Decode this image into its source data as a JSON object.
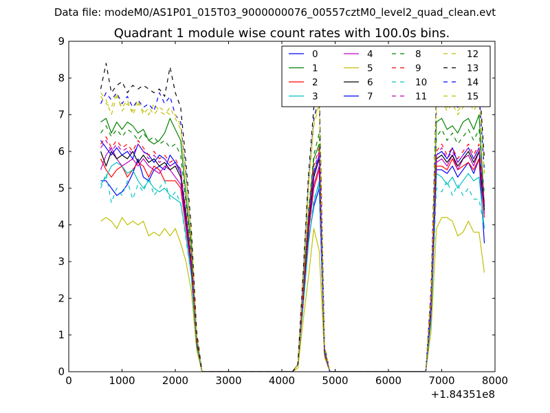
{
  "chart_data": {
    "type": "line",
    "suptitle": "Data file: modeM0/AS1P01_015T03_9000000076_00557cztM0_level2_quad_clean.evt",
    "title": "Quadrant 1 module wise count rates with 100.0s bins.",
    "xlabel": "",
    "ylabel": "",
    "x_offset_label": "+1.84351e8",
    "xlim": [
      0,
      8000
    ],
    "ylim": [
      0,
      9
    ],
    "xticks": [
      "0",
      "1000",
      "2000",
      "3000",
      "4000",
      "5000",
      "6000",
      "7000",
      "8000"
    ],
    "yticks": [
      "0",
      "1",
      "2",
      "3",
      "4",
      "5",
      "6",
      "7",
      "8",
      "9"
    ],
    "legend_position": "upper-right",
    "x": [
      600,
      700,
      800,
      900,
      1000,
      1100,
      1200,
      1300,
      1400,
      1500,
      1600,
      1700,
      1800,
      1900,
      2000,
      2100,
      2200,
      2300,
      2400,
      2500,
      2600,
      2700,
      2800,
      2900,
      3000,
      3100,
      3200,
      3300,
      3400,
      3500,
      3600,
      3700,
      3800,
      3900,
      4000,
      4100,
      4200,
      4300,
      4400,
      4500,
      4600,
      4700,
      4800,
      4900,
      5000,
      5100,
      5200,
      5300,
      5400,
      5500,
      5600,
      5700,
      5800,
      5900,
      6000,
      6100,
      6200,
      6300,
      6400,
      6500,
      6600,
      6700,
      6800,
      6900,
      7000,
      7100,
      7200,
      7300,
      7400,
      7500,
      7600,
      7700,
      7800
    ],
    "series": [
      {
        "name": "0",
        "color": "#0000ff",
        "dash": "solid",
        "values": [
          5.2,
          5.2,
          5.0,
          4.8,
          4.9,
          5.1,
          5.4,
          5.8,
          5.3,
          5.2,
          5.5,
          5.6,
          5.5,
          5.9,
          5.7,
          5.5,
          4.0,
          2.8,
          0.8,
          0,
          0,
          0,
          0,
          0,
          0,
          0,
          0,
          0,
          0,
          0,
          0,
          0,
          0,
          0,
          0,
          0,
          0,
          0.2,
          2.0,
          3.6,
          4.5,
          5.0,
          0.5,
          0,
          0,
          0,
          0,
          0,
          0,
          0,
          0,
          0,
          0,
          0,
          0,
          0,
          0,
          0,
          0,
          0,
          0,
          0,
          1.5,
          5.5,
          5.5,
          5.4,
          5.6,
          5.3,
          5.5,
          5.7,
          5.4,
          5.8,
          3.5
        ]
      },
      {
        "name": "1",
        "color": "#008000",
        "dash": "solid",
        "values": [
          6.8,
          6.9,
          6.5,
          6.8,
          6.6,
          6.8,
          6.7,
          6.5,
          6.6,
          6.3,
          6.2,
          6.3,
          6.5,
          6.9,
          6.6,
          6.3,
          4.8,
          3.4,
          1.0,
          0,
          0,
          0,
          0,
          0,
          0,
          0,
          0,
          0,
          0,
          0,
          0,
          0,
          0,
          0,
          0,
          0,
          0,
          0.2,
          2.3,
          4.3,
          5.8,
          6.2,
          0.6,
          0,
          0,
          0,
          0,
          0,
          0,
          0,
          0,
          0,
          0,
          0,
          0,
          0,
          0,
          0,
          0,
          0,
          0,
          0,
          1.9,
          6.8,
          6.9,
          6.6,
          6.7,
          6.5,
          6.8,
          6.9,
          6.6,
          7.0,
          4.5
        ]
      },
      {
        "name": "2",
        "color": "#ff0000",
        "dash": "solid",
        "values": [
          5.8,
          5.5,
          5.3,
          5.5,
          5.6,
          5.3,
          5.5,
          5.7,
          5.6,
          5.3,
          5.6,
          5.5,
          5.2,
          5.2,
          5.2,
          5.0,
          3.9,
          2.8,
          0.8,
          0,
          0,
          0,
          0,
          0,
          0,
          0,
          0,
          0,
          0,
          0,
          0,
          0,
          0,
          0,
          0,
          0,
          0,
          0.2,
          1.9,
          3.8,
          5.0,
          5.5,
          0.5,
          0,
          0,
          0,
          0,
          0,
          0,
          0,
          0,
          0,
          0,
          0,
          0,
          0,
          0,
          0,
          0,
          0,
          0,
          0,
          1.6,
          5.6,
          5.6,
          5.5,
          5.8,
          5.5,
          5.6,
          5.7,
          5.5,
          5.8,
          4.2
        ]
      },
      {
        "name": "3",
        "color": "#00bfbf",
        "dash": "solid",
        "values": [
          5.1,
          5.3,
          5.6,
          5.7,
          5.6,
          5.4,
          5.5,
          5.2,
          5.0,
          5.2,
          5.0,
          4.9,
          5.0,
          4.8,
          4.7,
          4.6,
          3.7,
          2.6,
          0.7,
          0,
          0,
          0,
          0,
          0,
          0,
          0,
          0,
          0,
          0,
          0,
          0,
          0,
          0,
          0,
          0,
          0,
          0,
          0.2,
          1.8,
          3.5,
          4.6,
          5.2,
          0.5,
          0,
          0,
          0,
          0,
          0,
          0,
          0,
          0,
          0,
          0,
          0,
          0,
          0,
          0,
          0,
          0,
          0,
          0,
          0,
          1.4,
          5.4,
          5.3,
          5.1,
          5.3,
          5.0,
          5.2,
          5.4,
          5.2,
          5.3,
          3.9
        ]
      },
      {
        "name": "4",
        "color": "#bf00bf",
        "dash": "solid",
        "values": [
          5.5,
          5.9,
          6.1,
          5.8,
          5.6,
          5.7,
          5.8,
          5.6,
          5.8,
          5.6,
          5.5,
          5.4,
          5.6,
          5.5,
          5.3,
          5.1,
          4.0,
          2.8,
          0.8,
          0,
          0,
          0,
          0,
          0,
          0,
          0,
          0,
          0,
          0,
          0,
          0,
          0,
          0,
          0,
          0,
          0,
          0,
          0.2,
          1.9,
          3.9,
          5.1,
          5.6,
          0.5,
          0,
          0,
          0,
          0,
          0,
          0,
          0,
          0,
          0,
          0,
          0,
          0,
          0,
          0,
          0,
          0,
          0,
          0,
          0,
          1.6,
          5.7,
          5.8,
          5.6,
          5.9,
          5.5,
          5.8,
          5.9,
          5.6,
          6.0,
          4.3
        ]
      },
      {
        "name": "5",
        "color": "#bfbf00",
        "dash": "solid",
        "values": [
          4.1,
          4.2,
          4.1,
          3.9,
          4.2,
          4.0,
          4.1,
          4.0,
          4.1,
          3.7,
          3.8,
          3.7,
          3.9,
          3.7,
          3.9,
          3.5,
          3.0,
          2.2,
          0.6,
          0,
          0,
          0,
          0,
          0,
          0,
          0,
          0,
          0,
          0,
          0,
          0,
          0,
          0,
          0,
          0,
          0,
          0,
          0.1,
          1.4,
          2.6,
          3.9,
          3.3,
          0.4,
          0,
          0,
          0,
          0,
          0,
          0,
          0,
          0,
          0,
          0,
          0,
          0,
          0,
          0,
          0,
          0,
          0,
          0,
          0,
          1.1,
          3.9,
          4.2,
          4.2,
          4.1,
          3.7,
          3.8,
          4.1,
          3.8,
          3.8,
          2.7
        ]
      },
      {
        "name": "6",
        "color": "#000000",
        "dash": "solid",
        "values": [
          6.0,
          5.6,
          6.0,
          5.8,
          5.9,
          5.8,
          6.0,
          5.7,
          5.9,
          5.7,
          5.8,
          5.6,
          5.7,
          5.5,
          5.6,
          5.3,
          4.2,
          2.9,
          0.8,
          0,
          0,
          0,
          0,
          0,
          0,
          0,
          0,
          0,
          0,
          0,
          0,
          0,
          0,
          0,
          0,
          0,
          0,
          0.2,
          2.0,
          4.0,
          5.3,
          5.8,
          0.5,
          0,
          0,
          0,
          0,
          0,
          0,
          0,
          0,
          0,
          0,
          0,
          0,
          0,
          0,
          0,
          0,
          0,
          0,
          0,
          1.7,
          5.8,
          5.9,
          5.7,
          5.9,
          5.6,
          5.8,
          6.0,
          5.7,
          6.0,
          4.4
        ]
      },
      {
        "name": "7",
        "color": "#0000ff",
        "dash": "solid",
        "values": [
          6.3,
          6.1,
          5.9,
          6.1,
          5.9,
          6.0,
          5.8,
          6.2,
          6.0,
          5.9,
          5.7,
          5.9,
          5.8,
          5.6,
          5.7,
          5.4,
          4.3,
          3.0,
          0.9,
          0,
          0,
          0,
          0,
          0,
          0,
          0,
          0,
          0,
          0,
          0,
          0,
          0,
          0,
          0,
          0,
          0,
          0,
          0.2,
          2.1,
          4.1,
          5.4,
          5.9,
          0.5,
          0,
          0,
          0,
          0,
          0,
          0,
          0,
          0,
          0,
          0,
          0,
          0,
          0,
          0,
          0,
          0,
          0,
          0,
          0,
          1.7,
          5.9,
          6.0,
          5.8,
          6.1,
          5.7,
          5.9,
          6.1,
          5.8,
          6.1,
          4.5
        ]
      },
      {
        "name": "8",
        "color": "#008000",
        "dash": "dashed",
        "values": [
          6.5,
          6.7,
          6.4,
          6.6,
          6.4,
          6.6,
          6.5,
          6.3,
          6.5,
          6.3,
          6.4,
          6.2,
          6.3,
          6.1,
          6.2,
          5.9,
          4.6,
          3.2,
          0.9,
          0,
          0,
          0,
          0,
          0,
          0,
          0,
          0,
          0,
          0,
          0,
          0,
          0,
          0,
          0,
          0,
          0,
          0,
          0.2,
          2.2,
          4.4,
          5.9,
          6.5,
          0.6,
          0,
          0,
          0,
          0,
          0,
          0,
          0,
          0,
          0,
          0,
          0,
          0,
          0,
          0,
          0,
          0,
          0,
          0,
          0,
          1.9,
          6.4,
          6.6,
          6.3,
          6.5,
          6.2,
          6.4,
          6.6,
          6.3,
          6.6,
          4.8
        ]
      },
      {
        "name": "9",
        "color": "#ff0000",
        "dash": "dashed",
        "values": [
          6.2,
          6.4,
          6.1,
          6.3,
          6.1,
          6.2,
          6.0,
          6.3,
          6.1,
          5.9,
          6.0,
          5.8,
          5.9,
          5.7,
          5.8,
          5.5,
          4.4,
          3.0,
          0.9,
          0,
          0,
          0,
          0,
          0,
          0,
          0,
          0,
          0,
          0,
          0,
          0,
          0,
          0,
          0,
          0,
          0,
          0,
          0.2,
          2.1,
          4.2,
          5.6,
          6.1,
          0.5,
          0,
          0,
          0,
          0,
          0,
          0,
          0,
          0,
          0,
          0,
          0,
          0,
          0,
          0,
          0,
          0,
          0,
          0,
          0,
          1.8,
          6.0,
          6.2,
          5.9,
          6.1,
          5.8,
          6.0,
          6.2,
          5.9,
          6.2,
          4.6
        ]
      },
      {
        "name": "10",
        "color": "#00bfbf",
        "dash": "dashed",
        "values": [
          5.0,
          5.4,
          4.6,
          5.0,
          4.8,
          5.2,
          4.7,
          5.1,
          4.9,
          5.3,
          4.8,
          5.0,
          5.2,
          4.7,
          4.9,
          4.6,
          3.6,
          2.6,
          0.7,
          0,
          0,
          0,
          0,
          0,
          0,
          0,
          0,
          0,
          0,
          0,
          0,
          0,
          0,
          0,
          0,
          0,
          0,
          0.2,
          1.8,
          3.5,
          4.7,
          5.1,
          0.5,
          0,
          0,
          0,
          0,
          0,
          0,
          0,
          0,
          0,
          0,
          0,
          0,
          0,
          0,
          0,
          0,
          0,
          0,
          0,
          1.4,
          5.0,
          4.9,
          5.2,
          4.8,
          5.1,
          4.8,
          5.0,
          4.7,
          4.7,
          3.9
        ]
      },
      {
        "name": "11",
        "color": "#bf00bf",
        "dash": "dashed",
        "values": [
          6.1,
          6.3,
          6.0,
          6.2,
          6.0,
          6.1,
          5.9,
          6.2,
          6.0,
          5.8,
          5.9,
          5.7,
          5.8,
          5.6,
          5.7,
          5.4,
          4.3,
          3.0,
          0.9,
          0,
          0,
          0,
          0,
          0,
          0,
          0,
          0,
          0,
          0,
          0,
          0,
          0,
          0,
          0,
          0,
          0,
          0,
          0.2,
          2.1,
          4.1,
          5.5,
          6.0,
          0.5,
          0,
          0,
          0,
          0,
          0,
          0,
          0,
          0,
          0,
          0,
          0,
          0,
          0,
          0,
          0,
          0,
          0,
          0,
          0,
          1.8,
          5.9,
          6.1,
          5.8,
          6.0,
          5.7,
          5.9,
          6.1,
          5.8,
          6.1,
          4.5
        ]
      },
      {
        "name": "12",
        "color": "#bfbf00",
        "dash": "dashed",
        "values": [
          7.6,
          7.4,
          7.0,
          7.5,
          7.2,
          7.4,
          7.0,
          7.3,
          7.1,
          7.0,
          7.3,
          7.1,
          7.0,
          7.2,
          6.9,
          6.6,
          5.2,
          3.6,
          1.0,
          0,
          0,
          0,
          0,
          0,
          0,
          0,
          0,
          0,
          0,
          0,
          0,
          0,
          0,
          0,
          0,
          0,
          0,
          0.2,
          2.5,
          5.0,
          6.7,
          7.3,
          0.7,
          0,
          0,
          0,
          0,
          0,
          0,
          0,
          0,
          0,
          0,
          0,
          0,
          0,
          0,
          0,
          0,
          0,
          0,
          0,
          2.2,
          7.2,
          7.4,
          7.1,
          7.3,
          7.0,
          7.2,
          7.4,
          7.1,
          7.4,
          5.4
        ]
      },
      {
        "name": "13",
        "color": "#000000",
        "dash": "dashed",
        "values": [
          7.7,
          8.4,
          7.6,
          7.8,
          7.9,
          7.6,
          7.8,
          7.7,
          7.8,
          7.7,
          7.6,
          7.7,
          7.5,
          8.3,
          7.6,
          7.2,
          5.7,
          3.9,
          1.1,
          0,
          0,
          0,
          0,
          0,
          0,
          0,
          0,
          0,
          0,
          0,
          0,
          0,
          0,
          0,
          0,
          0,
          0,
          0.2,
          2.7,
          5.4,
          7.2,
          7.9,
          0.7,
          0,
          0,
          0,
          0,
          0,
          0,
          0,
          0,
          0,
          0,
          0,
          0,
          0,
          0,
          0,
          0,
          0,
          0,
          0,
          2.3,
          7.6,
          7.9,
          8.1,
          7.7,
          7.5,
          7.7,
          8.0,
          7.6,
          8.0,
          5.8
        ]
      },
      {
        "name": "14",
        "color": "#0000ff",
        "dash": "dashed",
        "values": [
          7.3,
          7.6,
          7.4,
          7.6,
          7.3,
          7.5,
          7.2,
          7.4,
          7.2,
          7.3,
          7.1,
          7.6,
          7.3,
          7.5,
          7.0,
          6.8,
          5.4,
          3.7,
          1.0,
          0,
          0,
          0,
          0,
          0,
          0,
          0,
          0,
          0,
          0,
          0,
          0,
          0,
          0,
          0,
          0,
          0,
          0,
          0.2,
          2.6,
          5.2,
          6.9,
          7.5,
          0.7,
          0,
          0,
          0,
          0,
          0,
          0,
          0,
          0,
          0,
          0,
          0,
          0,
          0,
          0,
          0,
          0,
          0,
          0,
          0,
          2.2,
          7.4,
          7.6,
          7.3,
          7.5,
          7.2,
          7.4,
          7.6,
          7.3,
          7.6,
          5.5
        ]
      },
      {
        "name": "15",
        "color": "#bfbf00",
        "dash": "dashed",
        "values": [
          7.5,
          7.3,
          7.2,
          7.6,
          7.1,
          7.3,
          7.1,
          7.4,
          7.0,
          7.2,
          7.0,
          7.2,
          7.1,
          7.0,
          7.0,
          6.7,
          5.3,
          3.7,
          1.0,
          0,
          0,
          0,
          0,
          0,
          0,
          0,
          0,
          0,
          0,
          0,
          0,
          0,
          0,
          0,
          0,
          0,
          0,
          0.2,
          2.5,
          5.1,
          6.8,
          7.4,
          0.7,
          0,
          0,
          0,
          0,
          0,
          0,
          0,
          0,
          0,
          0,
          0,
          0,
          0,
          0,
          0,
          0,
          0,
          0,
          0,
          2.2,
          7.3,
          7.5,
          7.2,
          7.4,
          7.1,
          7.3,
          7.5,
          7.2,
          7.5,
          5.4
        ]
      }
    ]
  }
}
